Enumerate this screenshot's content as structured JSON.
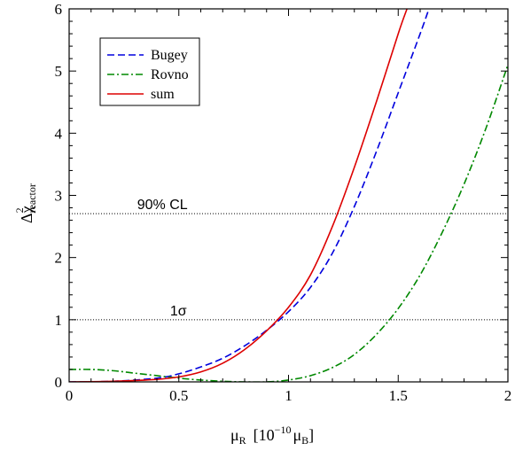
{
  "chart_data": {
    "type": "line",
    "xlabel": {
      "base": "μ",
      "sub": "R",
      "bracket_open": "[10",
      "exp": "−10",
      "unit": "μ",
      "unit_sub": "B",
      "bracket_close": "]"
    },
    "ylabel": {
      "base": "Δχ",
      "sup": "2",
      "sub": "reactor"
    },
    "xlim": [
      0,
      2
    ],
    "ylim": [
      0,
      6
    ],
    "xticks": [
      0,
      0.5,
      1,
      1.5,
      2
    ],
    "xtick_labels": [
      "0",
      "0.5",
      "1",
      "1.5",
      "2"
    ],
    "yticks": [
      0,
      1,
      2,
      3,
      4,
      5,
      6
    ],
    "ytick_labels": [
      "0",
      "1",
      "2",
      "3",
      "4",
      "5",
      "6"
    ],
    "legend": {
      "placement": "top-left"
    },
    "series": [
      {
        "name": "Bugey",
        "color": "#0000dd",
        "dash": "dashed",
        "x": [
          0,
          0.2,
          0.4,
          0.5,
          0.6,
          0.7,
          0.8,
          0.9,
          1.0,
          1.1,
          1.2,
          1.3,
          1.4,
          1.5,
          1.6,
          1.64
        ],
        "y": [
          0,
          0.01,
          0.06,
          0.13,
          0.24,
          0.38,
          0.58,
          0.83,
          1.13,
          1.52,
          2.07,
          2.82,
          3.7,
          4.65,
          5.6,
          6.0
        ]
      },
      {
        "name": "Rovno",
        "color": "#008800",
        "dash": "dashdot",
        "x": [
          0,
          0.1,
          0.2,
          0.3,
          0.4,
          0.5,
          0.6,
          0.7,
          0.8,
          0.9,
          1.0,
          1.1,
          1.2,
          1.3,
          1.4,
          1.5,
          1.6,
          1.7,
          1.8,
          1.9,
          2.0
        ],
        "y": [
          0.2,
          0.2,
          0.18,
          0.14,
          0.1,
          0.06,
          0.03,
          0.01,
          0.0,
          0.0,
          0.03,
          0.1,
          0.23,
          0.44,
          0.76,
          1.18,
          1.72,
          2.4,
          3.18,
          4.08,
          5.1
        ]
      },
      {
        "name": "sum",
        "color": "#dd0000",
        "dash": "solid",
        "x": [
          0,
          0.2,
          0.4,
          0.5,
          0.6,
          0.7,
          0.8,
          0.9,
          1.0,
          1.1,
          1.2,
          1.3,
          1.4,
          1.5,
          1.54
        ],
        "y": [
          0,
          0.01,
          0.04,
          0.08,
          0.16,
          0.3,
          0.52,
          0.82,
          1.2,
          1.72,
          2.5,
          3.45,
          4.5,
          5.6,
          6.0
        ]
      }
    ],
    "reference_lines": [
      {
        "y": 2.706,
        "label": "90% CL",
        "label_x": 0.31
      },
      {
        "y": 1.0,
        "label": "1σ",
        "label_x": 0.46
      }
    ]
  }
}
